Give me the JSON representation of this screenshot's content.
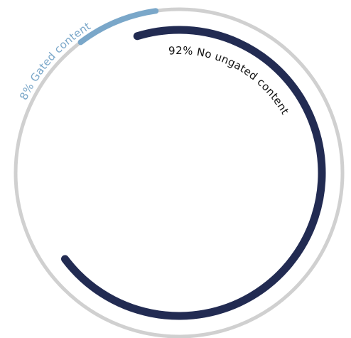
{
  "chart_data": {
    "type": "pie",
    "style": "radial-arc",
    "series": [
      {
        "label": "8% Gated content",
        "value": 8,
        "color": "#7aa7c9"
      },
      {
        "label": "92% No ungated content",
        "value": 92,
        "color": "#222b52"
      }
    ],
    "track_color": "#d0d0d0",
    "label_colors": {
      "gated": "#7aa7c9",
      "ungated": "#111111"
    }
  }
}
